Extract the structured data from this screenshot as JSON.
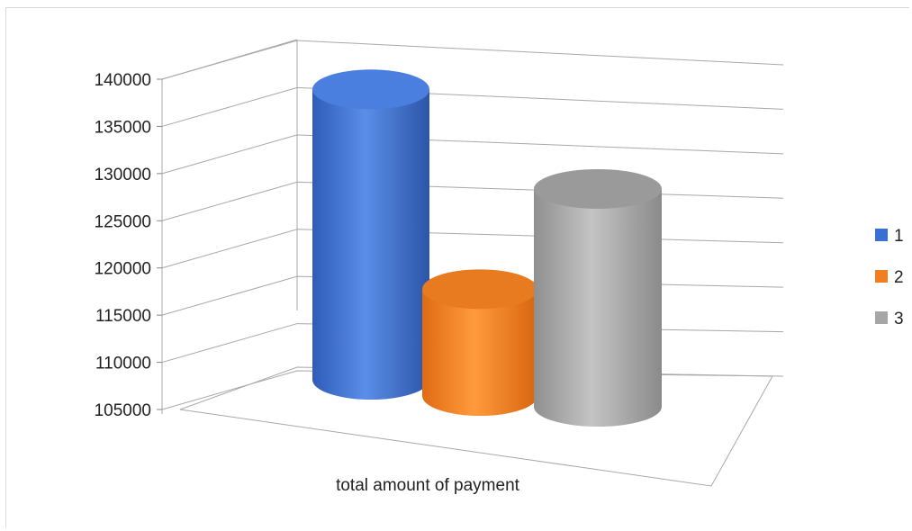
{
  "chart_data": {
    "type": "bar",
    "style": "3d-cylinder",
    "title": "",
    "xlabel": "total amount of payment",
    "ylabel": "",
    "ylim": [
      105000,
      140000
    ],
    "yticks": [
      105000,
      110000,
      115000,
      120000,
      125000,
      130000,
      135000,
      140000
    ],
    "categories": [
      "total amount of payment"
    ],
    "series": [
      {
        "name": "1",
        "values": [
          139000
        ],
        "color": "#3a6fd4"
      },
      {
        "name": "2",
        "values": [
          117500
        ],
        "color": "#f07f24"
      },
      {
        "name": "3",
        "values": [
          130500
        ],
        "color": "#a6a6a6"
      }
    ],
    "grid": true,
    "legend": "right"
  }
}
